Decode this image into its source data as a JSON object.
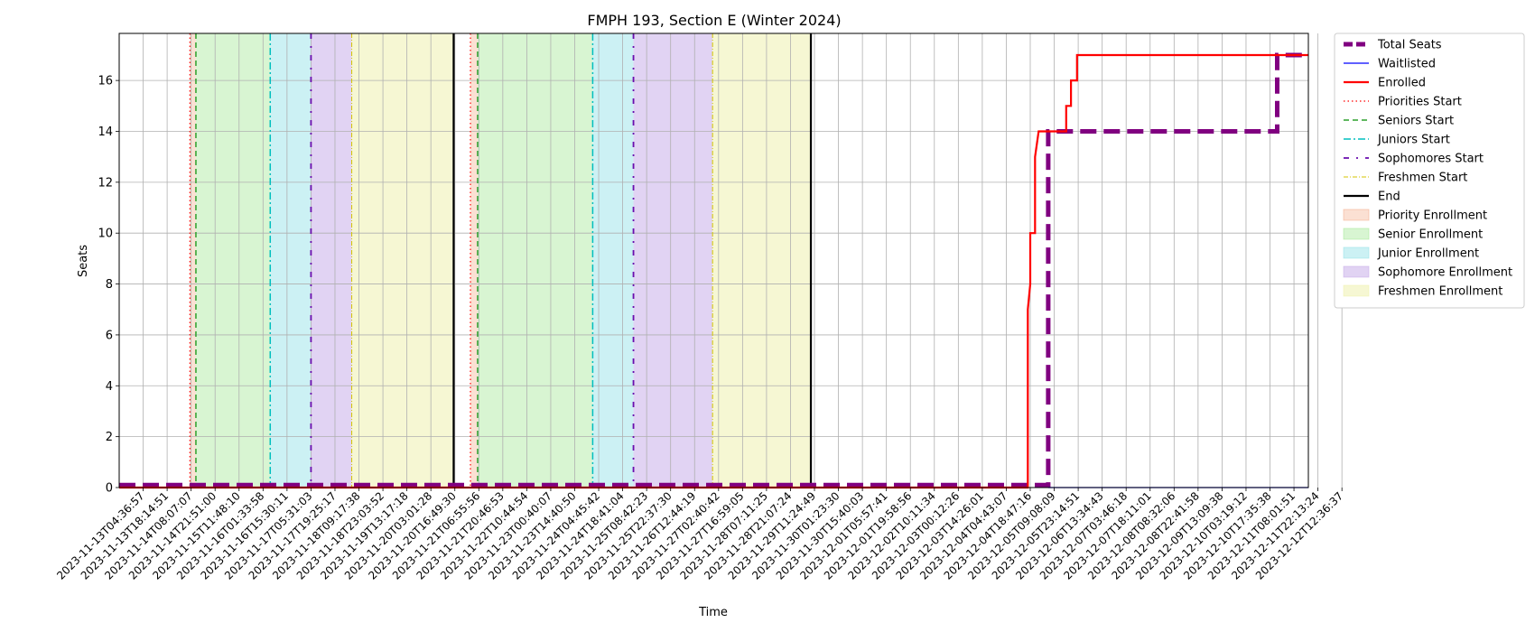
{
  "chart_data": {
    "type": "line",
    "title": "FMPH 193, Section E (Winter 2024)",
    "xlabel": "Time",
    "ylabel": "Seats",
    "ylim": [
      0,
      17.85
    ],
    "y_ticks": [
      0,
      2,
      4,
      6,
      8,
      10,
      12,
      14,
      16
    ],
    "grid": true,
    "legend_placement": "outside-upper-right",
    "x_tick_labels": [
      "2023-11-13T04:36:57",
      "2023-11-13T18:14:51",
      "2023-11-14T08:07:07",
      "2023-11-14T21:51:00",
      "2023-11-15T11:48:10",
      "2023-11-16T01:33:58",
      "2023-11-16T15:30:11",
      "2023-11-17T05:31:03",
      "2023-11-17T19:25:17",
      "2023-11-18T09:17:38",
      "2023-11-18T23:03:52",
      "2023-11-19T13:17:18",
      "2023-11-20T03:01:28",
      "2023-11-20T16:49:30",
      "2023-11-21T06:55:56",
      "2023-11-21T20:46:53",
      "2023-11-22T10:44:54",
      "2023-11-23T00:40:07",
      "2023-11-23T14:40:50",
      "2023-11-24T04:45:42",
      "2023-11-24T18:41:04",
      "2023-11-25T08:42:23",
      "2023-11-25T22:37:30",
      "2023-11-26T12:44:19",
      "2023-11-27T02:40:42",
      "2023-11-27T16:59:05",
      "2023-11-28T07:11:25",
      "2023-11-28T21:07:24",
      "2023-11-29T11:24:49",
      "2023-11-30T01:23:30",
      "2023-11-30T15:40:03",
      "2023-12-01T05:57:41",
      "2023-12-01T19:58:56",
      "2023-12-02T10:11:34",
      "2023-12-03T00:12:26",
      "2023-12-03T14:26:01",
      "2023-12-04T04:43:07",
      "2023-12-04T18:47:16",
      "2023-12-05T09:08:09",
      "2023-12-05T23:14:51",
      "2023-12-06T13:34:43",
      "2023-12-07T03:46:18",
      "2023-12-07T18:11:01",
      "2023-12-08T08:32:06",
      "2023-12-08T22:41:58",
      "2023-12-09T13:09:38",
      "2023-12-10T03:19:12",
      "2023-12-10T17:35:38",
      "2023-12-11T08:01:51",
      "2023-12-11T22:13:24",
      "2023-12-12T12:36:37"
    ],
    "x_range_index": [
      -1,
      48.6
    ],
    "series": [
      {
        "name": "Total Seats",
        "color": "#800080",
        "style": "dashed-thick",
        "points": [
          [
            -1,
            0.1
          ],
          [
            37.75,
            0.1
          ],
          [
            37.75,
            14
          ],
          [
            47.3,
            14
          ],
          [
            47.3,
            17
          ],
          [
            48.6,
            17
          ]
        ]
      },
      {
        "name": "Waitlisted",
        "color": "#0000ff",
        "style": "solid-thin",
        "points": [
          [
            37.75,
            0
          ],
          [
            48.6,
            0
          ]
        ]
      },
      {
        "name": "Enrolled",
        "color": "#ff0000",
        "style": "solid",
        "points": [
          [
            -1,
            0
          ],
          [
            36.9,
            0
          ],
          [
            36.9,
            7
          ],
          [
            37.0,
            8
          ],
          [
            37.0,
            10
          ],
          [
            37.2,
            10
          ],
          [
            37.2,
            13
          ],
          [
            37.35,
            14
          ],
          [
            38.5,
            14
          ],
          [
            38.5,
            15
          ],
          [
            38.7,
            15
          ],
          [
            38.7,
            16
          ],
          [
            38.95,
            16
          ],
          [
            38.95,
            17
          ],
          [
            48.6,
            17
          ]
        ]
      }
    ],
    "event_lines": [
      {
        "name": "Priorities Start",
        "color": "#ff0000",
        "style": "dotted",
        "x": [
          1.95,
          13.65
        ]
      },
      {
        "name": "Seniors Start",
        "color": "#2ca02c",
        "style": "dashed",
        "x": [
          2.2,
          13.95
        ]
      },
      {
        "name": "Juniors Start",
        "color": "#00bfbf",
        "style": "dashdot",
        "x": [
          5.3,
          18.75
        ]
      },
      {
        "name": "Sophomores Start",
        "color": "#6a0dad",
        "style": "loose-dashdot",
        "x": [
          7.0,
          20.45
        ]
      },
      {
        "name": "Freshmen Start",
        "color": "#d4c400",
        "style": "dashdot-thin",
        "x": [
          8.7,
          23.75
        ]
      },
      {
        "name": "End",
        "color": "#000000",
        "style": "solid",
        "x": [
          12.95,
          27.85
        ]
      }
    ],
    "shaded_periods": [
      {
        "name": "Priority Enrollment",
        "color": "#f4a582",
        "alpha": 0.35,
        "ranges": [
          [
            1.95,
            2.2
          ],
          [
            13.65,
            13.95
          ]
        ]
      },
      {
        "name": "Senior Enrollment",
        "color": "#9ee68f",
        "alpha": 0.4,
        "ranges": [
          [
            2.2,
            5.3
          ],
          [
            13.95,
            18.75
          ]
        ]
      },
      {
        "name": "Junior Enrollment",
        "color": "#8fe0e6",
        "alpha": 0.45,
        "ranges": [
          [
            5.3,
            7.0
          ],
          [
            18.75,
            20.45
          ]
        ]
      },
      {
        "name": "Sophomore Enrollment",
        "color": "#c4a8e8",
        "alpha": 0.5,
        "ranges": [
          [
            7.0,
            8.7
          ],
          [
            20.45,
            23.75
          ]
        ]
      },
      {
        "name": "Freshmen Enrollment",
        "color": "#eef0a8",
        "alpha": 0.5,
        "ranges": [
          [
            8.7,
            12.95
          ],
          [
            23.75,
            27.85
          ]
        ]
      }
    ]
  }
}
